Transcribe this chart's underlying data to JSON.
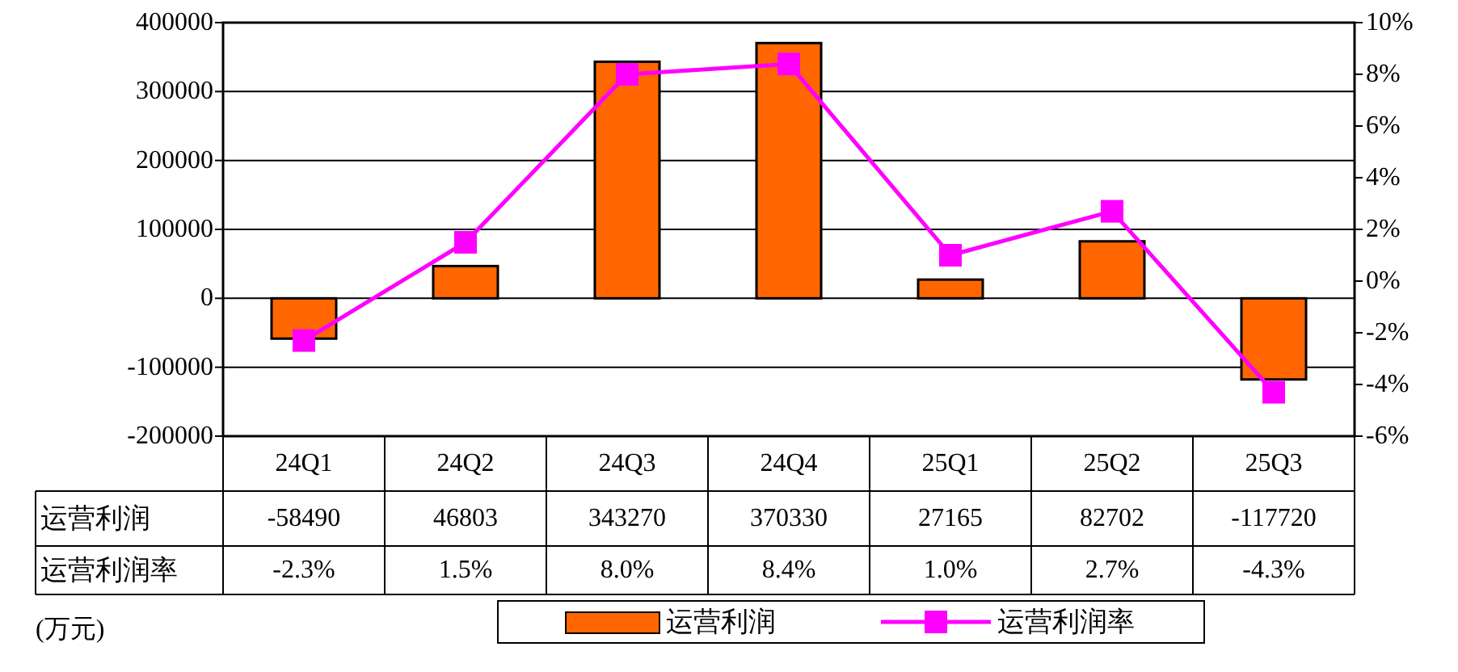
{
  "chart_data": {
    "type": "bar",
    "categories": [
      "24Q1",
      "24Q2",
      "24Q3",
      "24Q4",
      "25Q1",
      "25Q2",
      "25Q3"
    ],
    "series": [
      {
        "name": "运营利润",
        "color": "#ff6600",
        "values": [
          -58490,
          46803,
          343270,
          370330,
          27165,
          82702,
          -117720
        ],
        "value_labels": [
          "-58490",
          "46803",
          "343270",
          "370330",
          "27165",
          "82702",
          "-117720"
        ]
      },
      {
        "name": "运营利润率",
        "type": "line",
        "axis": "y2",
        "marker": "square",
        "color": "#ff00ff",
        "values": [
          -2.3,
          1.5,
          8.0,
          8.4,
          1.0,
          2.7,
          -4.3
        ],
        "value_labels": [
          "-2.3%",
          "1.5%",
          "8.0%",
          "8.4%",
          "1.0%",
          "2.7%",
          "-4.3%"
        ]
      }
    ],
    "ylim": [
      -200000,
      400000
    ],
    "yticks": [
      -200000,
      -100000,
      0,
      100000,
      200000,
      300000,
      400000
    ],
    "y2lim": [
      -6,
      10
    ],
    "y2ticks": [
      {
        "value": -6,
        "label": "-6%"
      },
      {
        "value": -4,
        "label": "-4%"
      },
      {
        "value": -2,
        "label": "-2%"
      },
      {
        "value": 0,
        "label": "0%"
      },
      {
        "value": 2,
        "label": "2%"
      },
      {
        "value": 4,
        "label": "4%"
      },
      {
        "value": 6,
        "label": "6%"
      },
      {
        "value": 8,
        "label": "8%"
      },
      {
        "value": 10,
        "label": "10%"
      }
    ],
    "grid": "y",
    "legend": "bottom",
    "annotations": [
      "(万元)"
    ]
  }
}
